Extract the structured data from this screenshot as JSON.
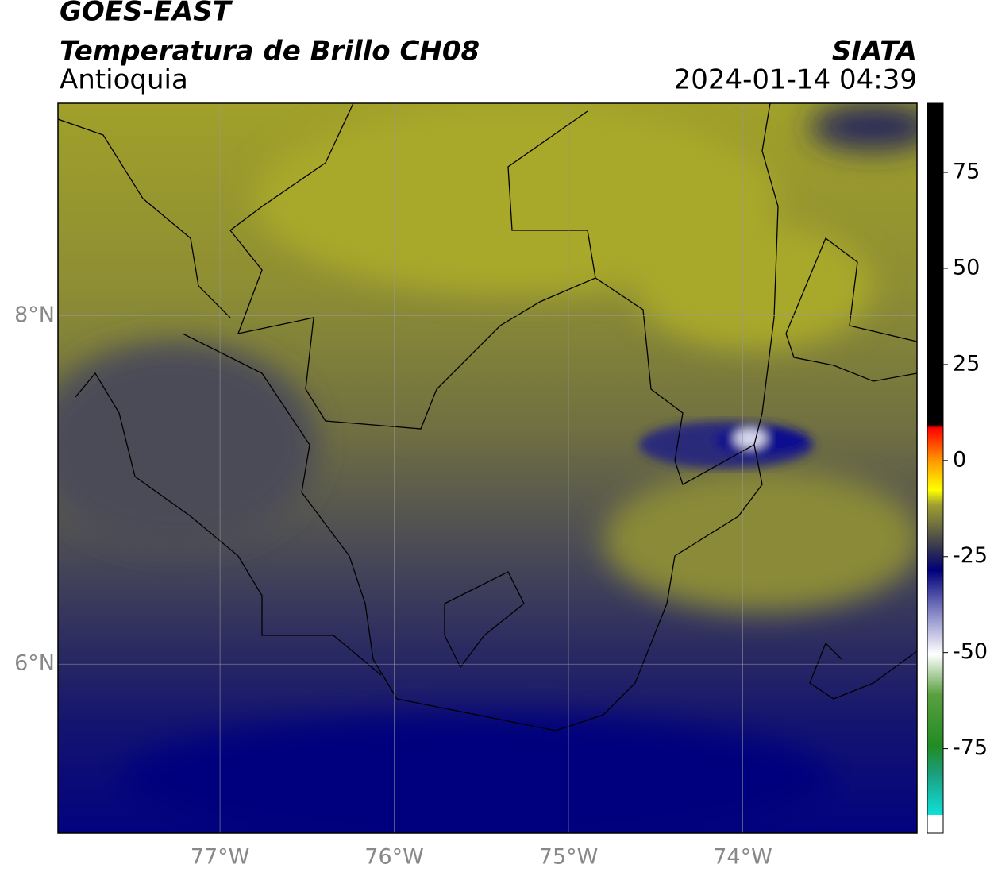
{
  "header": {
    "title": "GOES-EAST",
    "subtitle": "Temperatura de Brillo CH08",
    "region": "Antioquia",
    "source": "SIATA",
    "datetime": "2024-01-14 04:39"
  },
  "map": {
    "lon_range": [
      -77.93,
      -73.0
    ],
    "lat_range": [
      5.03,
      9.22
    ],
    "lon_ticks": [
      {
        "value": -77,
        "label": "77°W"
      },
      {
        "value": -76,
        "label": "76°W"
      },
      {
        "value": -75,
        "label": "75°W"
      },
      {
        "value": -74,
        "label": "74°W"
      }
    ],
    "lat_ticks": [
      {
        "value": 8,
        "label": "8°N"
      },
      {
        "value": 6,
        "label": "6°N"
      }
    ]
  },
  "colorbar": {
    "range": [
      -97,
      93
    ],
    "ticks": [
      75,
      50,
      25,
      0,
      -25,
      -50,
      -75
    ]
  }
}
